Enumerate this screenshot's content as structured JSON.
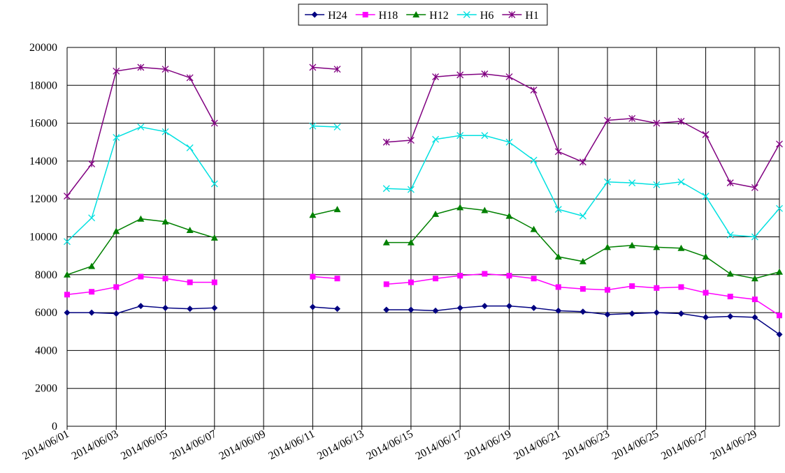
{
  "chart_data": {
    "type": "line",
    "categories": [
      "2014/06/01",
      null,
      "2014/06/03",
      null,
      "2014/06/05",
      null,
      "2014/06/07",
      null,
      "2014/06/09",
      null,
      "2014/06/11",
      null,
      "2014/06/13",
      null,
      "2014/06/15",
      null,
      "2014/06/17",
      null,
      "2014/06/19",
      null,
      "2014/06/21",
      null,
      "2014/06/23",
      null,
      "2014/06/25",
      null,
      "2014/06/27",
      null,
      "2014/06/29",
      null
    ],
    "series": [
      {
        "name": "H24",
        "color": "#000080",
        "marker": "diamond",
        "values": [
          6000,
          6000,
          5950,
          6350,
          6250,
          6200,
          6250,
          null,
          null,
          null,
          6300,
          6200,
          null,
          6150,
          6150,
          6100,
          6250,
          6350,
          6350,
          6250,
          6100,
          6050,
          5900,
          5950,
          6000,
          5950,
          5750,
          5800,
          5750,
          4850
        ]
      },
      {
        "name": "H18",
        "color": "#ff00ff",
        "marker": "square",
        "values": [
          6950,
          7100,
          7350,
          7900,
          7800,
          7600,
          7600,
          null,
          null,
          null,
          7900,
          7800,
          null,
          7500,
          7600,
          7800,
          7950,
          8050,
          7950,
          7800,
          7350,
          7250,
          7200,
          7400,
          7300,
          7350,
          7050,
          6850,
          6700,
          5850
        ]
      },
      {
        "name": "H12",
        "color": "#008000",
        "marker": "triangle",
        "values": [
          8000,
          8450,
          10300,
          10950,
          10800,
          10350,
          9950,
          null,
          null,
          null,
          11150,
          11450,
          null,
          9700,
          9700,
          11200,
          11550,
          11400,
          11100,
          10400,
          8950,
          8700,
          9450,
          9550,
          9450,
          9400,
          8950,
          8050,
          7800,
          8150
        ]
      },
      {
        "name": "H6",
        "color": "#00e0e0",
        "marker": "x",
        "values": [
          9750,
          11000,
          15250,
          15800,
          15550,
          14700,
          12800,
          null,
          null,
          null,
          15850,
          15800,
          null,
          12550,
          12500,
          15150,
          15350,
          15350,
          15000,
          14050,
          11450,
          11100,
          12900,
          12850,
          12750,
          12900,
          12150,
          10100,
          10000,
          11500
        ]
      },
      {
        "name": "H1",
        "color": "#800080",
        "marker": "star",
        "values": [
          12150,
          13850,
          18750,
          18950,
          18850,
          18400,
          16000,
          null,
          null,
          null,
          18950,
          18850,
          null,
          15000,
          15100,
          18450,
          18550,
          18600,
          18450,
          17750,
          14500,
          13950,
          16150,
          16250,
          16000,
          16100,
          15400,
          12850,
          12600,
          14900
        ]
      }
    ],
    "ylim": [
      0,
      20000
    ],
    "yticks": [
      0,
      2000,
      4000,
      6000,
      8000,
      10000,
      12000,
      14000,
      16000,
      18000,
      20000
    ],
    "grid": true,
    "legend": "top"
  }
}
